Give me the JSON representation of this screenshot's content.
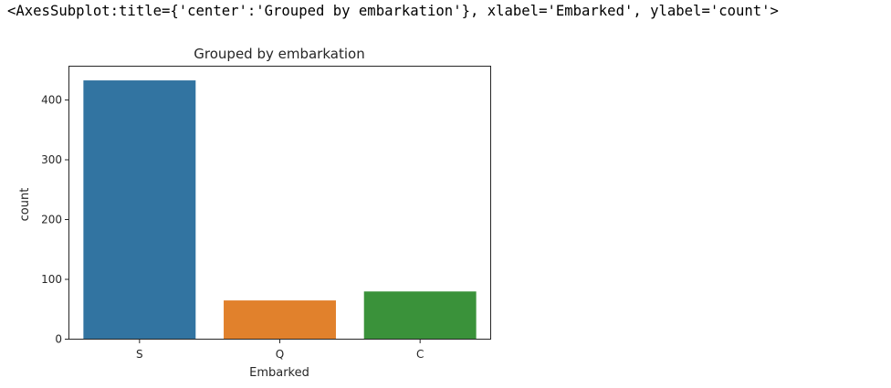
{
  "output_text": "<AxesSubplot:title={'center':'Grouped by embarkation'}, xlabel='Embarked', ylabel='count'>",
  "chart_data": {
    "type": "bar",
    "title": "Grouped by embarkation",
    "xlabel": "Embarked",
    "ylabel": "count",
    "categories": [
      "S",
      "Q",
      "C"
    ],
    "values": [
      432,
      64,
      79
    ],
    "colors": [
      "#3274a1",
      "#e1812c",
      "#3a923a"
    ],
    "ylim": [
      0,
      455
    ],
    "yticks": [
      0,
      100,
      200,
      300,
      400
    ],
    "grid": false
  }
}
